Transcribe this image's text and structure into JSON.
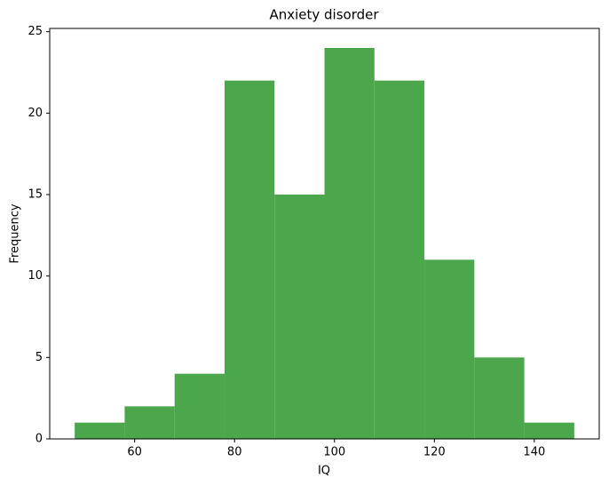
{
  "chart_data": {
    "type": "histogram",
    "title": "Anxiety disorder",
    "x_label": "IQ",
    "y_label": "Frequency",
    "bins": [
      48,
      58,
      68,
      78,
      88,
      98,
      108,
      118,
      128,
      138,
      148
    ],
    "values": [
      1,
      2,
      4,
      22,
      15,
      24,
      22,
      11,
      5,
      1
    ],
    "color": "#4ca64c",
    "xlim": [
      43,
      153
    ],
    "xticks": [
      60,
      80,
      100,
      120,
      140
    ],
    "ylim": [
      0,
      25.2
    ],
    "yticks": [
      0,
      5,
      10,
      15,
      20,
      25
    ]
  }
}
